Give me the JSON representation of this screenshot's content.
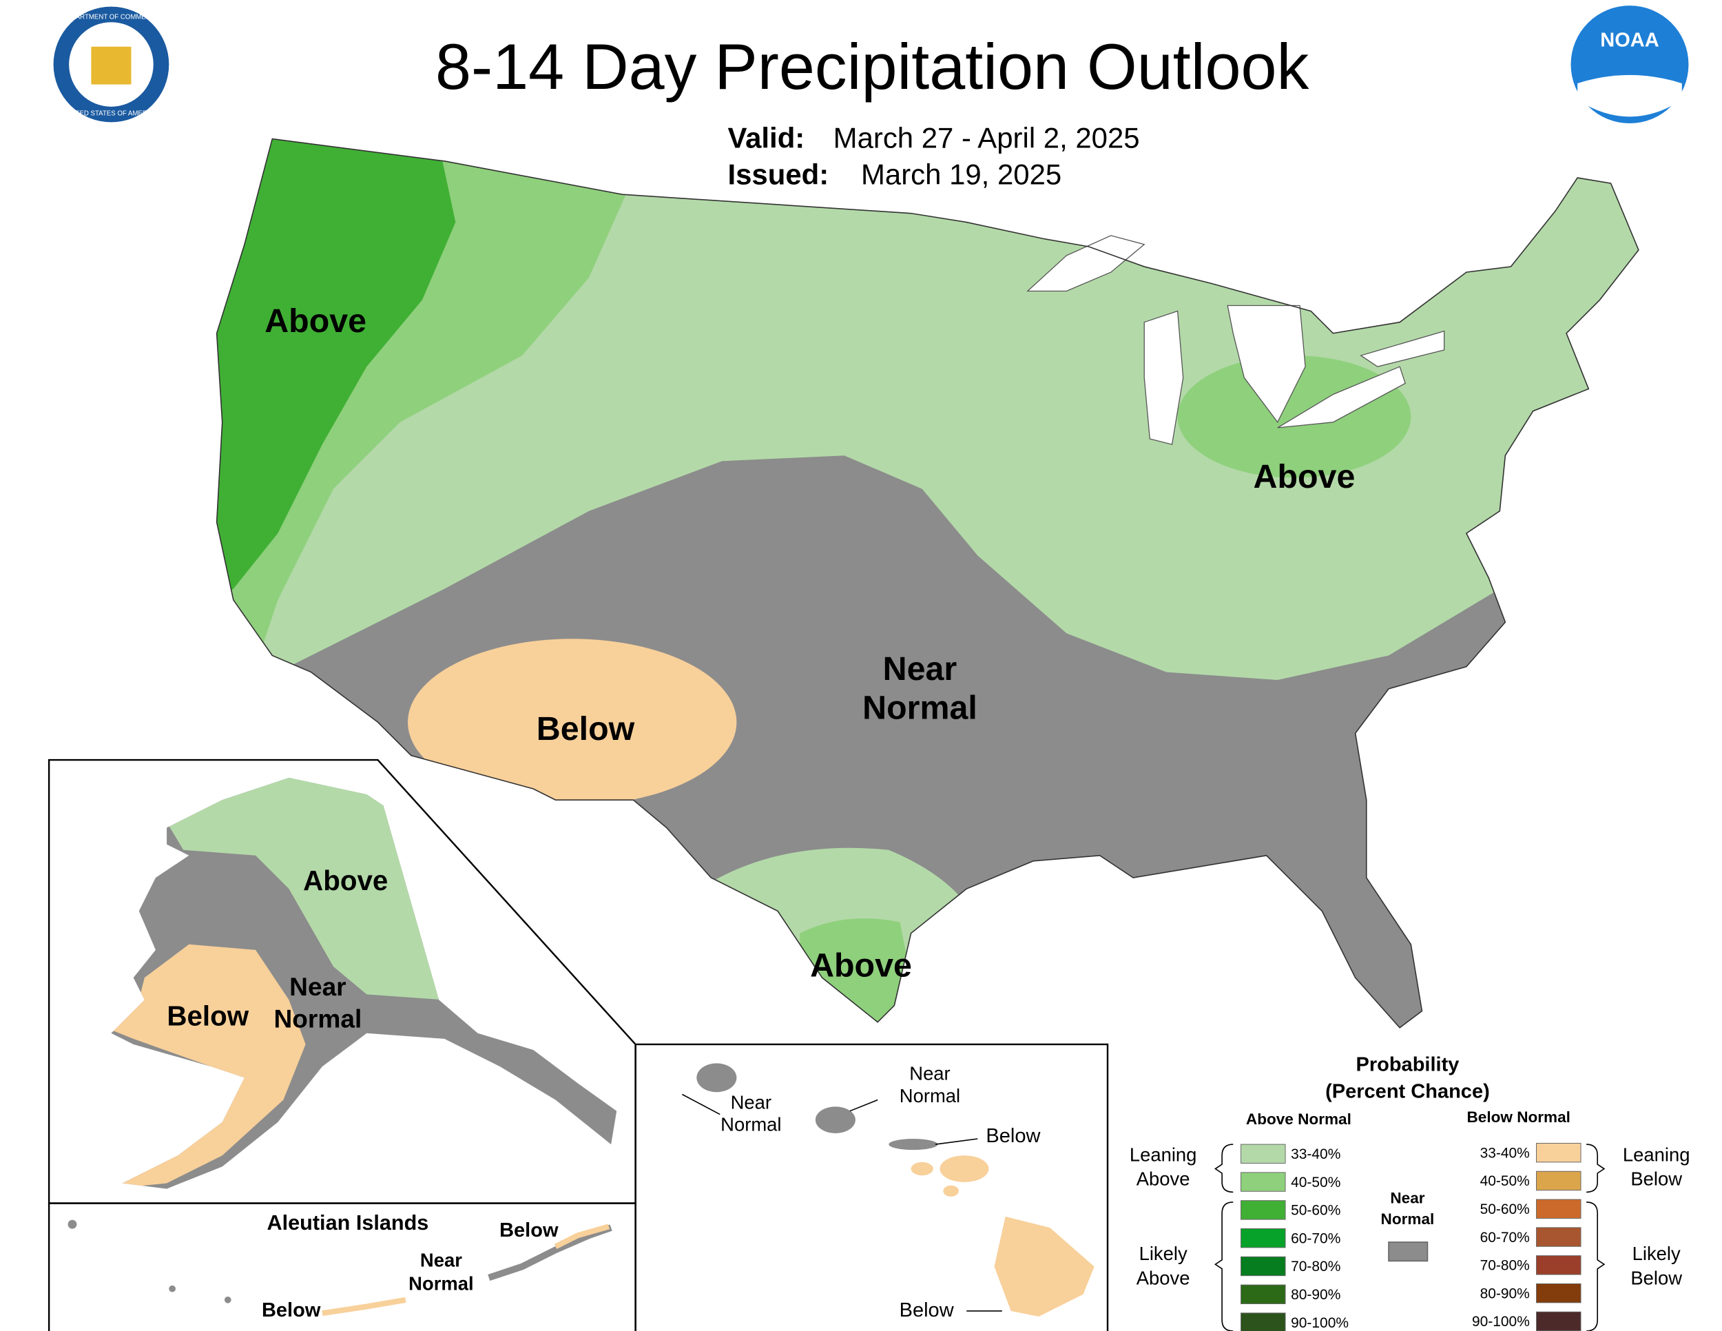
{
  "header": {
    "title": "8-14 Day Precipitation Outlook",
    "valid_label": "Valid:",
    "valid_dates": "March 27 - April 2, 2025",
    "issued_label": "Issued:",
    "issued_date": "March 19, 2025"
  },
  "logos": {
    "seal_top": "DEPARTMENT OF COMMERCE",
    "seal_bottom": "UNITED STATES OF AMERICA",
    "noaa": "NOAA"
  },
  "conus_labels": {
    "northwest": "Above",
    "great_lakes": "Above",
    "southwest": "Below",
    "central": [
      "Near",
      "Normal"
    ],
    "south_texas": "Above"
  },
  "alaska_labels": {
    "north": "Above",
    "center": [
      "Near",
      "Normal"
    ],
    "west": "Below"
  },
  "aleutian": {
    "title": "Aleutian Islands",
    "east": "Below",
    "center": [
      "Near",
      "Normal"
    ],
    "west": "Below"
  },
  "hawaii_labels": {
    "kauai": [
      "Near",
      "Normal"
    ],
    "oahu": [
      "Near",
      "Normal"
    ],
    "molokai": "Below",
    "big_island": "Below"
  },
  "legend": {
    "title": "Probability",
    "subtitle": "(Percent Chance)",
    "above_header": "Above Normal",
    "below_header": "Below Normal",
    "near_normal": [
      "Near",
      "Normal"
    ],
    "near_normal_color": "#8c8c8c",
    "leaning_above": [
      "Leaning",
      "Above"
    ],
    "likely_above": [
      "Likely",
      "Above"
    ],
    "leaning_below": [
      "Leaning",
      "Below"
    ],
    "likely_below": [
      "Likely",
      "Below"
    ],
    "above_bins": [
      {
        "label": "33-40%",
        "color": "#b3d9a8"
      },
      {
        "label": "40-50%",
        "color": "#8fd07c"
      },
      {
        "label": "50-60%",
        "color": "#40b035"
      },
      {
        "label": "60-70%",
        "color": "#07a22a"
      },
      {
        "label": "70-80%",
        "color": "#067d1e"
      },
      {
        "label": "80-90%",
        "color": "#2c6a18"
      },
      {
        "label": "90-100%",
        "color": "#2b531b"
      }
    ],
    "below_bins": [
      {
        "label": "33-40%",
        "color": "#f8d09a"
      },
      {
        "label": "40-50%",
        "color": "#dba54c"
      },
      {
        "label": "50-60%",
        "color": "#cc6a2c"
      },
      {
        "label": "60-70%",
        "color": "#a8562f"
      },
      {
        "label": "70-80%",
        "color": "#9b3f2a"
      },
      {
        "label": "80-90%",
        "color": "#833c0b"
      },
      {
        "label": "90-100%",
        "color": "#4d2a2a"
      }
    ]
  }
}
